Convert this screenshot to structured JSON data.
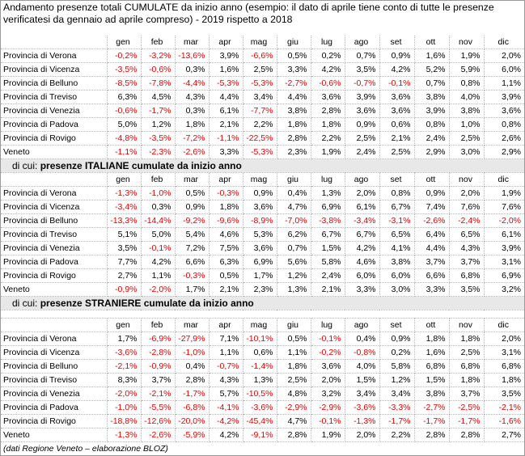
{
  "title": "Andamento presenze totali CUMULATE da inizio anno (esempio: il dato di aprile tiene conto di tutte le presenze verificatesi da gennaio ad aprile compreso) - 2019 rispetto a 2018",
  "months": [
    "gen",
    "feb",
    "mar",
    "apr",
    "mag",
    "giu",
    "lug",
    "ago",
    "set",
    "ott",
    "nov",
    "dic"
  ],
  "section1": {
    "rows": [
      {
        "label": "Provincia di Verona",
        "values": [
          "-0,2%",
          "-3,2%",
          "-13,6%",
          "3,9%",
          "-6,6%",
          "0,5%",
          "0,2%",
          "0,7%",
          "0,9%",
          "1,6%",
          "1,9%",
          "2,0%"
        ]
      },
      {
        "label": "Provincia di Vicenza",
        "values": [
          "-3,5%",
          "-0,6%",
          "0,3%",
          "1,6%",
          "2,5%",
          "3,3%",
          "4,2%",
          "3,5%",
          "4,2%",
          "5,2%",
          "5,9%",
          "6,0%"
        ]
      },
      {
        "label": "Provincia di Belluno",
        "values": [
          "-8,5%",
          "-7,8%",
          "-4,4%",
          "-5,3%",
          "-5,3%",
          "-2,7%",
          "-0,6%",
          "-0,7%",
          "-0,1%",
          "0,7%",
          "0,8%",
          "1,1%"
        ]
      },
      {
        "label": "Provincia di Treviso",
        "values": [
          "6,3%",
          "4,5%",
          "4,3%",
          "4,4%",
          "3,4%",
          "4,4%",
          "3,6%",
          "3,9%",
          "3,6%",
          "3,8%",
          "4,0%",
          "3,9%"
        ]
      },
      {
        "label": "Provincia di Venezia",
        "values": [
          "-0,6%",
          "-1,7%",
          "0,3%",
          "6,1%",
          "-7,7%",
          "3,8%",
          "2,8%",
          "3,6%",
          "3,6%",
          "3,9%",
          "3,8%",
          "3,6%"
        ]
      },
      {
        "label": "Provincia di Padova",
        "values": [
          "5,0%",
          "1,2%",
          "1,8%",
          "2,1%",
          "2,2%",
          "1,8%",
          "1,8%",
          "0,9%",
          "0,6%",
          "0,8%",
          "1,0%",
          "0,8%"
        ]
      },
      {
        "label": "Provincia di Rovigo",
        "values": [
          "-4,8%",
          "-3,5%",
          "-7,2%",
          "-1,1%",
          "-22,5%",
          "2,8%",
          "2,2%",
          "2,5%",
          "2,1%",
          "2,4%",
          "2,5%",
          "2,6%"
        ]
      },
      {
        "label": "Veneto",
        "values": [
          "-1,1%",
          "-2,3%",
          "-2,6%",
          "3,3%",
          "-5,3%",
          "2,3%",
          "1,9%",
          "2,4%",
          "2,5%",
          "2,9%",
          "3,0%",
          "2,9%"
        ]
      }
    ]
  },
  "section2": {
    "prefix": "di cui: ",
    "title": "presenze ITALIANE cumulate da inizio anno",
    "rows": [
      {
        "label": "Provincia di Verona",
        "values": [
          "-1,3%",
          "-1,0%",
          "0,5%",
          "-0,3%",
          "0,9%",
          "0,4%",
          "1,3%",
          "2,0%",
          "0,8%",
          "0,9%",
          "2,0%",
          "1,9%"
        ]
      },
      {
        "label": "Provincia di Vicenza",
        "values": [
          "-3,4%",
          "0,3%",
          "0,9%",
          "1,8%",
          "3,6%",
          "4,7%",
          "6,9%",
          "6,1%",
          "6,7%",
          "7,4%",
          "7,6%",
          "7,6%"
        ]
      },
      {
        "label": "Provincia di Belluno",
        "values": [
          "-13,3%",
          "-14,4%",
          "-9,2%",
          "-9,6%",
          "-8,9%",
          "-7,0%",
          "-3,8%",
          "-3,4%",
          "-3,1%",
          "-2,6%",
          "-2,4%",
          "-2,0%"
        ]
      },
      {
        "label": "Provincia di Treviso",
        "values": [
          "5,1%",
          "5,0%",
          "5,4%",
          "4,6%",
          "5,3%",
          "6,2%",
          "6,7%",
          "6,7%",
          "6,5%",
          "6,4%",
          "6,5%",
          "6,1%"
        ]
      },
      {
        "label": "Provincia di Venezia",
        "values": [
          "3,5%",
          "-0,1%",
          "7,2%",
          "7,5%",
          "3,6%",
          "0,7%",
          "1,5%",
          "4,2%",
          "4,1%",
          "4,4%",
          "4,3%",
          "3,9%"
        ]
      },
      {
        "label": "Provincia di Padova",
        "values": [
          "7,7%",
          "4,2%",
          "6,6%",
          "6,3%",
          "6,9%",
          "5,6%",
          "5,8%",
          "4,6%",
          "3,8%",
          "3,7%",
          "3,7%",
          "3,1%"
        ]
      },
      {
        "label": "Provincia di Rovigo",
        "values": [
          "2,7%",
          "1,1%",
          "-0,3%",
          "0,5%",
          "1,7%",
          "1,2%",
          "2,4%",
          "6,0%",
          "6,0%",
          "6,6%",
          "6,8%",
          "6,9%"
        ]
      },
      {
        "label": "Veneto",
        "values": [
          "-0,9%",
          "-2,0%",
          "1,7%",
          "2,1%",
          "2,3%",
          "1,3%",
          "2,1%",
          "3,3%",
          "3,0%",
          "3,3%",
          "3,5%",
          "3,2%"
        ]
      }
    ]
  },
  "section3": {
    "prefix": "di cui: ",
    "title": "presenze STRANIERE cumulate da inizio anno",
    "rows": [
      {
        "label": "Provincia di Verona",
        "values": [
          "1,7%",
          "-6,9%",
          "-27,9%",
          "7,1%",
          "-10,1%",
          "0,5%",
          "-0,1%",
          "0,4%",
          "0,9%",
          "1,8%",
          "1,8%",
          "2,0%"
        ]
      },
      {
        "label": "Provincia di Vicenza",
        "values": [
          "-3,6%",
          "-2,8%",
          "-1,0%",
          "1,1%",
          "0,6%",
          "1,1%",
          "-0,2%",
          "-0,8%",
          "0,2%",
          "1,6%",
          "2,5%",
          "3,1%"
        ]
      },
      {
        "label": "Provincia di Belluno",
        "values": [
          "-2,1%",
          "-0,9%",
          "0,4%",
          "-0,7%",
          "-1,4%",
          "1,8%",
          "3,6%",
          "4,0%",
          "5,8%",
          "6,8%",
          "6,8%",
          "6,8%"
        ]
      },
      {
        "label": "Provincia di Treviso",
        "values": [
          "8,3%",
          "3,7%",
          "2,8%",
          "4,3%",
          "1,3%",
          "2,5%",
          "2,0%",
          "1,5%",
          "1,2%",
          "1,5%",
          "1,8%",
          "1,8%"
        ]
      },
      {
        "label": "Provincia di Venezia",
        "values": [
          "-2,0%",
          "-2,1%",
          "-1,7%",
          "5,7%",
          "-10,5%",
          "4,8%",
          "3,2%",
          "3,4%",
          "3,4%",
          "3,8%",
          "3,7%",
          "3,5%"
        ]
      },
      {
        "label": "Provincia di Padova",
        "values": [
          "-1,0%",
          "-5,5%",
          "-6,8%",
          "-4,1%",
          "-3,6%",
          "-2,9%",
          "-2,9%",
          "-3,6%",
          "-3,3%",
          "-2,7%",
          "-2,5%",
          "-2,1%"
        ]
      },
      {
        "label": "Provincia di Rovigo",
        "values": [
          "-18,8%",
          "-12,6%",
          "-20,0%",
          "-4,2%",
          "-45,4%",
          "4,7%",
          "-0,1%",
          "-1,3%",
          "-1,7%",
          "-1,7%",
          "-1,7%",
          "-1,6%"
        ]
      },
      {
        "label": "Veneto",
        "values": [
          "-1,3%",
          "-2,6%",
          "-5,9%",
          "4,2%",
          "-9,1%",
          "2,8%",
          "1,9%",
          "2,0%",
          "2,2%",
          "2,8%",
          "2,8%",
          "2,7%"
        ]
      }
    ]
  },
  "footer": "(dati Regione Veneto – elaborazione BLOZ)",
  "colors": {
    "negative": "#e80000",
    "section_bg": "#e8e8e8"
  }
}
